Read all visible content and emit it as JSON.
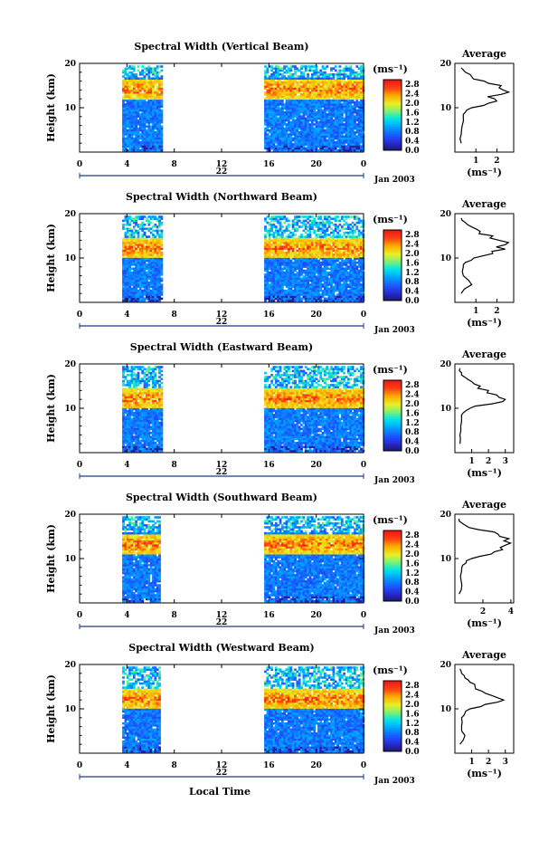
{
  "figure": {
    "xlabel": "Local Time",
    "date_label": "Jan 2003",
    "day_label": "22",
    "cbar_unit": "(ms⁻¹)",
    "avg_title": "Average",
    "avg_unit": "(ms⁻¹)"
  },
  "chart_data": [
    {
      "type": "heatmap",
      "title": "Spectral Width (Vertical Beam)",
      "ylabel": "Height (km)",
      "xlabel": "",
      "xlim": [
        0,
        24
      ],
      "ylim": [
        0,
        20
      ],
      "xticks": [
        "0",
        "4",
        "8",
        "12",
        "16",
        "20",
        "0"
      ],
      "yticks": [
        "10",
        "20"
      ],
      "data_intervals_hours": [
        [
          3.6,
          7.0
        ],
        [
          15.6,
          24.0
        ]
      ],
      "colorbar": {
        "ticks": [
          "0.0",
          "0.4",
          "0.8",
          "1.2",
          "1.6",
          "2.0",
          "2.4",
          "2.8"
        ],
        "range": [
          0,
          3.0
        ],
        "unit": "(ms⁻¹)"
      },
      "average_profile": {
        "title": "Average",
        "xlabel": "(ms⁻¹)",
        "xlim": [
          0,
          2.8
        ],
        "xticks": [
          "1",
          "2"
        ],
        "height": [
          2,
          4,
          6,
          8,
          9,
          10,
          11,
          12,
          13,
          14,
          15,
          16,
          17,
          18,
          19
        ],
        "width": [
          0.3,
          0.3,
          0.35,
          0.4,
          0.5,
          0.8,
          1.6,
          1.9,
          2.2,
          2.3,
          2.2,
          1.4,
          0.8,
          0.5,
          0.3
        ]
      }
    },
    {
      "type": "heatmap",
      "title": "Spectral Width (Northward Beam)",
      "ylabel": "Height (km)",
      "xlabel": "",
      "xlim": [
        0,
        24
      ],
      "ylim": [
        0,
        20
      ],
      "xticks": [
        "0",
        "4",
        "8",
        "12",
        "16",
        "20",
        "0"
      ],
      "yticks": [
        "10",
        "20"
      ],
      "data_intervals_hours": [
        [
          3.6,
          7.0
        ],
        [
          15.6,
          24.0
        ]
      ],
      "colorbar": {
        "ticks": [
          "0.0",
          "0.4",
          "0.8",
          "1.2",
          "1.6",
          "2.0",
          "2.4",
          "2.8"
        ],
        "range": [
          0,
          3.0
        ],
        "unit": "(ms⁻¹)"
      },
      "average_profile": {
        "title": "Average",
        "xlabel": "(ms⁻¹)",
        "xlim": [
          0,
          2.8
        ],
        "xticks": [
          "1",
          "2"
        ],
        "height": [
          2,
          4,
          6,
          8,
          9,
          10,
          11,
          12,
          13,
          14,
          15,
          16,
          17,
          18,
          19
        ],
        "width": [
          0.3,
          0.8,
          0.4,
          0.4,
          0.5,
          0.9,
          1.8,
          2.4,
          2.4,
          2.1,
          1.8,
          1.2,
          0.8,
          0.5,
          0.3
        ]
      }
    },
    {
      "type": "heatmap",
      "title": "Spectral Width (Eastward Beam)",
      "ylabel": "Height (km)",
      "xlabel": "",
      "xlim": [
        0,
        24
      ],
      "ylim": [
        0,
        20
      ],
      "xticks": [
        "0",
        "4",
        "8",
        "12",
        "16",
        "20",
        "0"
      ],
      "yticks": [
        "10",
        "20"
      ],
      "data_intervals_hours": [
        [
          3.6,
          7.0
        ],
        [
          15.6,
          24.0
        ]
      ],
      "colorbar": {
        "ticks": [
          "0.0",
          "0.4",
          "0.8",
          "1.2",
          "1.6",
          "2.0",
          "2.4",
          "2.8"
        ],
        "range": [
          0,
          3.0
        ],
        "unit": "(ms⁻¹)"
      },
      "average_profile": {
        "title": "Average",
        "xlabel": "(ms⁻¹)",
        "xlim": [
          0,
          3.5
        ],
        "xticks": [
          "1",
          "2",
          "3"
        ],
        "height": [
          2,
          4,
          6,
          8,
          9,
          10,
          11,
          12,
          13,
          14,
          15,
          16,
          17,
          18,
          19
        ],
        "width": [
          0.3,
          0.3,
          0.35,
          0.4,
          0.5,
          0.9,
          2.2,
          3.0,
          2.5,
          2.0,
          1.5,
          1.0,
          0.6,
          0.4,
          0.3
        ]
      }
    },
    {
      "type": "heatmap",
      "title": "Spectral Width (Southward Beam)",
      "ylabel": "Height (km)",
      "xlabel": "",
      "xlim": [
        0,
        24
      ],
      "ylim": [
        0,
        20
      ],
      "xticks": [
        "0",
        "4",
        "8",
        "12",
        "16",
        "20",
        "0"
      ],
      "yticks": [
        "10",
        "20"
      ],
      "data_intervals_hours": [
        [
          3.6,
          6.7
        ],
        [
          15.6,
          24.0
        ]
      ],
      "colorbar": {
        "ticks": [
          "0.0",
          "0.4",
          "0.8",
          "1.2",
          "1.6",
          "2.0",
          "2.4",
          "2.8"
        ],
        "range": [
          0,
          3.0
        ],
        "unit": "(ms⁻¹)"
      },
      "average_profile": {
        "title": "Average",
        "xlabel": "(ms⁻¹)",
        "xlim": [
          0,
          4.2
        ],
        "xticks": [
          "2",
          "4"
        ],
        "height": [
          2,
          4,
          6,
          8,
          9,
          10,
          11,
          12,
          13,
          14,
          15,
          16,
          17,
          18,
          19
        ],
        "width": [
          0.3,
          0.5,
          0.4,
          0.5,
          0.8,
          1.2,
          2.6,
          3.4,
          3.6,
          3.5,
          3.2,
          2.8,
          1.0,
          0.5,
          0.3
        ]
      }
    },
    {
      "type": "heatmap",
      "title": "Spectral Width (Westward Beam)",
      "ylabel": "Height (km)",
      "xlabel": "Local Time",
      "xlim": [
        0,
        24
      ],
      "ylim": [
        0,
        20
      ],
      "xticks": [
        "0",
        "4",
        "8",
        "12",
        "16",
        "20",
        "0"
      ],
      "yticks": [
        "10",
        "20"
      ],
      "data_intervals_hours": [
        [
          3.6,
          6.7
        ],
        [
          15.6,
          24.0
        ]
      ],
      "colorbar": {
        "ticks": [
          "0.0",
          "0.4",
          "0.8",
          "1.2",
          "1.6",
          "2.0",
          "2.4",
          "2.8"
        ],
        "range": [
          0,
          3.0
        ],
        "unit": "(ms⁻¹)"
      },
      "average_profile": {
        "title": "Average",
        "xlabel": "(ms⁻¹)",
        "xlim": [
          0,
          3.5
        ],
        "xticks": [
          "1",
          "2",
          "3"
        ],
        "height": [
          2,
          4,
          6,
          8,
          9,
          10,
          11,
          12,
          13,
          14,
          15,
          16,
          17,
          18,
          19
        ],
        "width": [
          0.3,
          0.6,
          0.4,
          0.4,
          0.6,
          0.9,
          1.8,
          2.9,
          2.2,
          1.6,
          1.2,
          0.9,
          0.6,
          0.4,
          0.3
        ]
      }
    }
  ]
}
